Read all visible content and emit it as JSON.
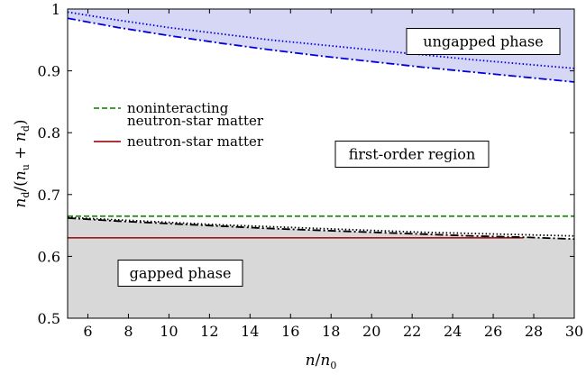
{
  "chart_data": {
    "type": "line",
    "xlabel": "n/n0",
    "ylabel": "nd/(nu + nd)",
    "xlim": [
      5,
      30
    ],
    "ylim": [
      0.5,
      1.0
    ],
    "x_ticks": [
      "6",
      "8",
      "10",
      "12",
      "14",
      "16",
      "18",
      "20",
      "22",
      "24",
      "26",
      "28",
      "30"
    ],
    "y_ticks": [
      "0.5",
      "0.6",
      "0.7",
      "0.8",
      "0.9",
      "1"
    ],
    "grid": false,
    "legend_position": "left",
    "regions": [
      {
        "label": "ungapped phase",
        "color": "#d6d6f5"
      },
      {
        "label": "gapped phase",
        "color": "#d8d8d8"
      },
      {
        "label": "first-order region",
        "color": "#ffffff"
      }
    ],
    "series": [
      {
        "name": "noninteracting neutron-star matter",
        "style": "dashed",
        "color": "#2e8b20",
        "x": [
          5,
          30
        ],
        "y": [
          0.665,
          0.665
        ]
      },
      {
        "name": "neutron-star matter",
        "style": "solid",
        "color": "#a01818",
        "x": [
          5,
          27.5
        ],
        "y": [
          0.63,
          0.63
        ]
      },
      {
        "style": "dotted",
        "color": "#0000dd",
        "x": [
          5,
          7.5,
          10,
          12.5,
          15,
          17.5,
          20,
          22.5,
          25,
          27.5,
          30
        ],
        "y": [
          0.995,
          0.982,
          0.97,
          0.96,
          0.95,
          0.942,
          0.934,
          0.926,
          0.918,
          0.911,
          0.904
        ]
      },
      {
        "style": "dashdot",
        "color": "#0000dd",
        "x": [
          5,
          7.5,
          10,
          12.5,
          15,
          17.5,
          20,
          22.5,
          25,
          27.5,
          30
        ],
        "y": [
          0.985,
          0.97,
          0.957,
          0.945,
          0.934,
          0.924,
          0.915,
          0.906,
          0.898,
          0.89,
          0.882
        ]
      },
      {
        "style": "dotted",
        "color": "#000000",
        "x": [
          5,
          7.5,
          10,
          12.5,
          15,
          17.5,
          20,
          22.5,
          25,
          27.5,
          30
        ],
        "y": [
          0.663,
          0.659,
          0.655,
          0.651,
          0.648,
          0.645,
          0.642,
          0.639,
          0.637,
          0.635,
          0.633
        ]
      },
      {
        "style": "dashdot",
        "color": "#000000",
        "x": [
          5,
          7.5,
          10,
          12.5,
          15,
          17.5,
          20,
          22.5,
          25,
          27.5,
          30
        ],
        "y": [
          0.662,
          0.657,
          0.653,
          0.649,
          0.645,
          0.642,
          0.639,
          0.636,
          0.633,
          0.631,
          0.628
        ]
      }
    ],
    "legend": [
      {
        "label_lines": [
          "noninteracting",
          "neutron-star matter"
        ],
        "style": "dashed",
        "color": "#2e8b20"
      },
      {
        "label_lines": [
          "neutron-star matter"
        ],
        "style": "solid",
        "color": "#a01818"
      }
    ]
  }
}
